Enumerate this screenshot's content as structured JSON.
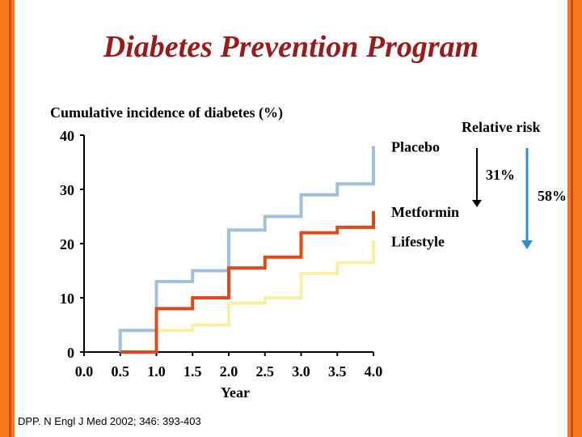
{
  "title": "Diabetes Prevention Program",
  "citation": "DPP. N Engl J Med 2002; 346: 393-403",
  "colors": {
    "placebo": "#9fc0d8",
    "metformin": "#e04a16",
    "lifestyle": "#f8f0a0",
    "arrow_31": "#000000",
    "arrow_58": "#2c8fd6",
    "title": "#9b1b1b"
  },
  "relative_risk": {
    "label": "Relative risk",
    "arrows": [
      {
        "label": "31%"
      },
      {
        "label": "58%"
      }
    ]
  },
  "chart_data": {
    "type": "line",
    "ylabel": "Cumulative incidence of diabetes (%)",
    "xlabel": "Year",
    "xlim": [
      0.0,
      4.0
    ],
    "ylim": [
      0,
      40
    ],
    "xticks": [
      "0.0",
      "0.5",
      "1.0",
      "1.5",
      "2.0",
      "2.5",
      "3.0",
      "3.5",
      "4.0"
    ],
    "yticks": [
      "0",
      "10",
      "20",
      "30",
      "40"
    ],
    "grid": false,
    "series": [
      {
        "name": "Placebo",
        "x": [
          0.5,
          0.5,
          1.0,
          1.5,
          2.0,
          2.5,
          3.0,
          3.5,
          4.0
        ],
        "y": [
          0,
          4,
          13,
          15,
          22.5,
          25,
          29,
          31,
          38
        ]
      },
      {
        "name": "Metformin",
        "x": [
          0.5,
          1.0,
          1.5,
          2.0,
          2.5,
          3.0,
          3.5,
          4.0
        ],
        "y": [
          0,
          8,
          10,
          15.5,
          17.5,
          22,
          23,
          26
        ]
      },
      {
        "name": "Lifestyle",
        "x": [
          0.5,
          1.0,
          1.5,
          2.0,
          2.5,
          3.0,
          3.5,
          4.0
        ],
        "y": [
          0,
          4,
          5,
          9,
          10,
          14.5,
          16.5,
          20.5
        ]
      }
    ]
  }
}
